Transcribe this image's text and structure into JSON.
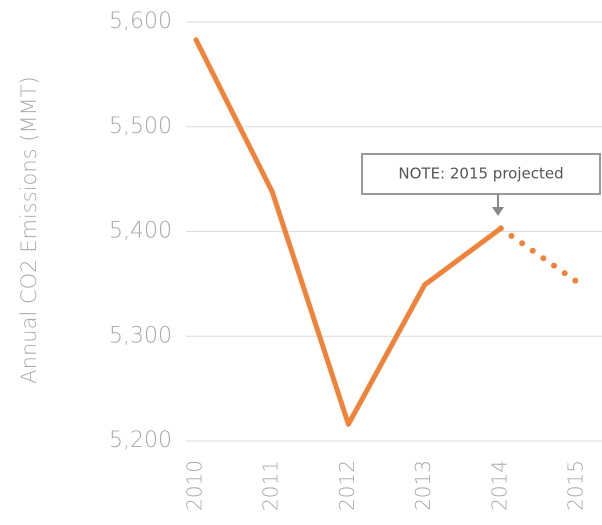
{
  "chart_data": {
    "type": "line",
    "y_label": "Annual CO2 Emissions (MMT)",
    "annotation": "NOTE: 2015 projected",
    "categories": [
      "2010",
      "2011",
      "2012",
      "2013",
      "2014",
      "2015"
    ],
    "series": [
      {
        "color": "#f0823a",
        "dash": false,
        "values": [
          5583,
          5438,
          5216,
          5349,
          5403,
          null
        ]
      },
      {
        "color": "#f0823a",
        "dash": true,
        "values": [
          null,
          null,
          null,
          null,
          5403,
          5352
        ]
      }
    ],
    "ylim": [
      5200,
      5600
    ],
    "yticks": [
      {
        "value": 5200,
        "label": "5,200"
      },
      {
        "value": 5300,
        "label": "5,300"
      },
      {
        "value": 5400,
        "label": "5,400"
      },
      {
        "value": 5500,
        "label": "5,500"
      },
      {
        "value": 5600,
        "label": "5,600"
      }
    ],
    "grid": true
  }
}
